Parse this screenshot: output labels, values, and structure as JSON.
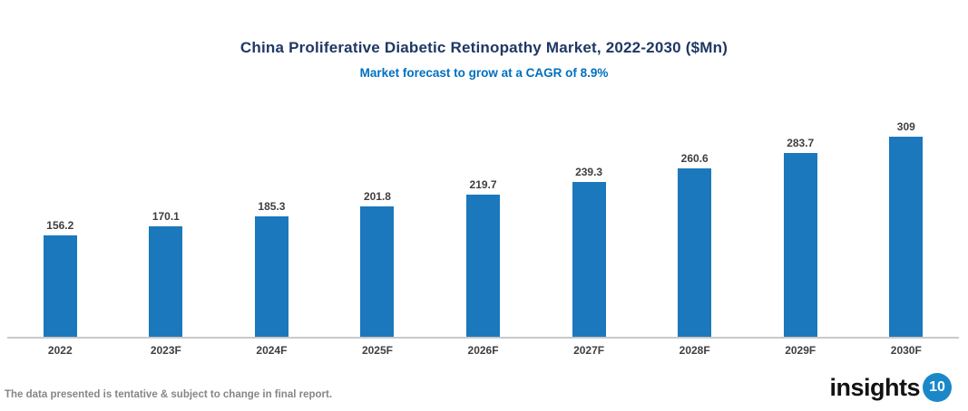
{
  "chart_data": {
    "type": "bar",
    "title": "China Proliferative Diabetic Retinopathy Market, 2022-2030 ($Mn)",
    "subtitle": "Market forecast to grow at a CAGR of 8.9%",
    "categories": [
      "2022",
      "2023F",
      "2024F",
      "2025F",
      "2026F",
      "2027F",
      "2028F",
      "2029F",
      "2030F"
    ],
    "values": [
      156.2,
      170.1,
      185.3,
      201.8,
      219.7,
      239.3,
      260.6,
      283.7,
      309
    ],
    "xlabel": "",
    "ylabel": "",
    "ylim": [
      0,
      320
    ],
    "grid": false,
    "legend_position": "none",
    "value_labels_shown": true,
    "bar_color": "#1B78BC"
  },
  "footer": {
    "disclaimer": "The data presented is tentative & subject to change in final report.",
    "logo_text": "insights",
    "logo_number": "10"
  },
  "colors": {
    "title_text": "#1F3864",
    "subtitle_text": "#0070C0",
    "bar_fill": "#1B78BC",
    "data_label_text": "#3F3F3F",
    "axis_line": "#C9C9C9",
    "disclaimer_text": "#868686",
    "logo_text": "#131313",
    "logo_circle": "#1A87C8"
  }
}
